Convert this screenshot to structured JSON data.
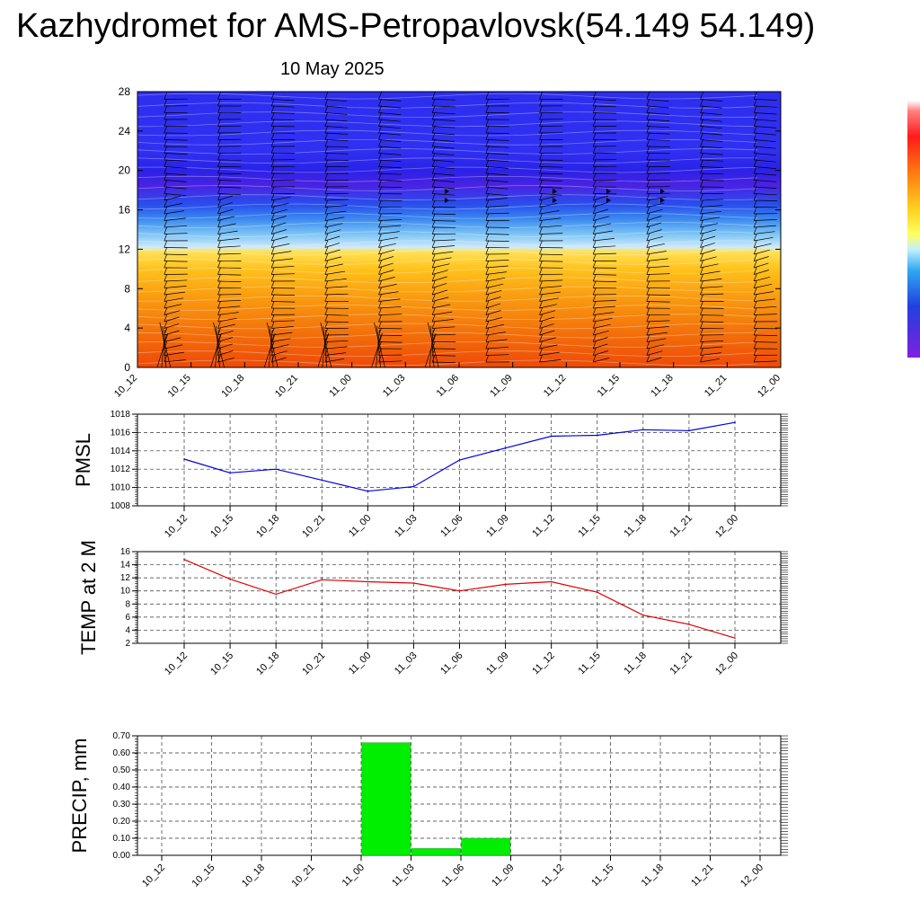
{
  "header": {
    "title": "Kazhydromet for AMS-Petropavlovsk(54.149 54.149)",
    "date": "10 May 2025"
  },
  "colors": {
    "pmsl_line": "#0000e0",
    "temp_line": "#e00000",
    "precip_bar": "#00ee00",
    "colorbar_top": "#ff2020",
    "colorbar_mid": "#ffee40",
    "colorbar_bottom": "#7a1ee0"
  },
  "chart_data": [
    {
      "type": "heatmap",
      "name": "vertical-profile",
      "x_ticks": [
        "10_12",
        "10_15",
        "10_18",
        "10_21",
        "11_00",
        "11_03",
        "11_06",
        "11_09",
        "11_12",
        "11_15",
        "11_18",
        "11_21",
        "12_00"
      ],
      "y_ticks": [
        0,
        4,
        8,
        12,
        16,
        20,
        24,
        28
      ],
      "ylim": [
        0,
        28
      ],
      "bands": [
        {
          "z": 0,
          "color": "#ee4a08"
        },
        {
          "z": 3,
          "color": "#f26a0a"
        },
        {
          "z": 7,
          "color": "#f99a10"
        },
        {
          "z": 10,
          "color": "#ffc21c"
        },
        {
          "z": 11.8,
          "color": "#ffe25a"
        },
        {
          "z": 12.2,
          "color": "#cfeafc"
        },
        {
          "z": 13.5,
          "color": "#7fc6f5"
        },
        {
          "z": 15,
          "color": "#3d8cf0"
        },
        {
          "z": 16.5,
          "color": "#2850ee"
        },
        {
          "z": 18.5,
          "color": "#4a22e2"
        },
        {
          "z": 20,
          "color": "#2a22e8"
        },
        {
          "z": 22,
          "color": "#3030f2"
        },
        {
          "z": 28,
          "color": "#2e2ef0"
        }
      ]
    },
    {
      "type": "line",
      "name": "pmsl",
      "ylabel": "PMSL",
      "categories": [
        "10_12",
        "10_15",
        "10_18",
        "10_21",
        "11_00",
        "11_03",
        "11_06",
        "11_09",
        "11_12",
        "11_15",
        "11_18",
        "11_21",
        "12_00"
      ],
      "values": [
        1013.1,
        1011.6,
        1012.0,
        1010.8,
        1009.6,
        1010.1,
        1013.0,
        1014.3,
        1015.6,
        1015.7,
        1016.3,
        1016.2,
        1017.1
      ],
      "ylim": [
        1008,
        1018
      ],
      "y_ticks": [
        1008,
        1010,
        1012,
        1014,
        1016,
        1018
      ],
      "grid": true
    },
    {
      "type": "line",
      "name": "temp",
      "ylabel": "TEMP at 2 M",
      "categories": [
        "10_12",
        "10_15",
        "10_18",
        "10_21",
        "11_00",
        "11_03",
        "11_06",
        "11_09",
        "11_12",
        "11_15",
        "11_18",
        "11_21",
        "12_00"
      ],
      "values": [
        14.8,
        11.8,
        9.5,
        11.7,
        11.4,
        11.2,
        10.0,
        11.0,
        11.4,
        9.8,
        6.3,
        4.9,
        2.8
      ],
      "ylim": [
        2,
        16
      ],
      "y_ticks": [
        2,
        4,
        6,
        8,
        10,
        12,
        14,
        16
      ],
      "grid": true
    },
    {
      "type": "bar",
      "name": "precip",
      "ylabel": "PRECIP, mm",
      "categories": [
        "10_12",
        "10_15",
        "10_18",
        "10_21",
        "11_00",
        "11_03",
        "11_06",
        "11_09",
        "11_12",
        "11_15",
        "11_18",
        "11_21",
        "12_00"
      ],
      "values": [
        0,
        0,
        0,
        0,
        0.66,
        0.04,
        0.1,
        0,
        0,
        0,
        0,
        0,
        0
      ],
      "ylim": [
        0,
        0.7
      ],
      "y_ticks": [
        "0.00",
        "0.10",
        "0.20",
        "0.30",
        "0.40",
        "0.50",
        "0.60",
        "0.70"
      ],
      "grid": true
    }
  ]
}
